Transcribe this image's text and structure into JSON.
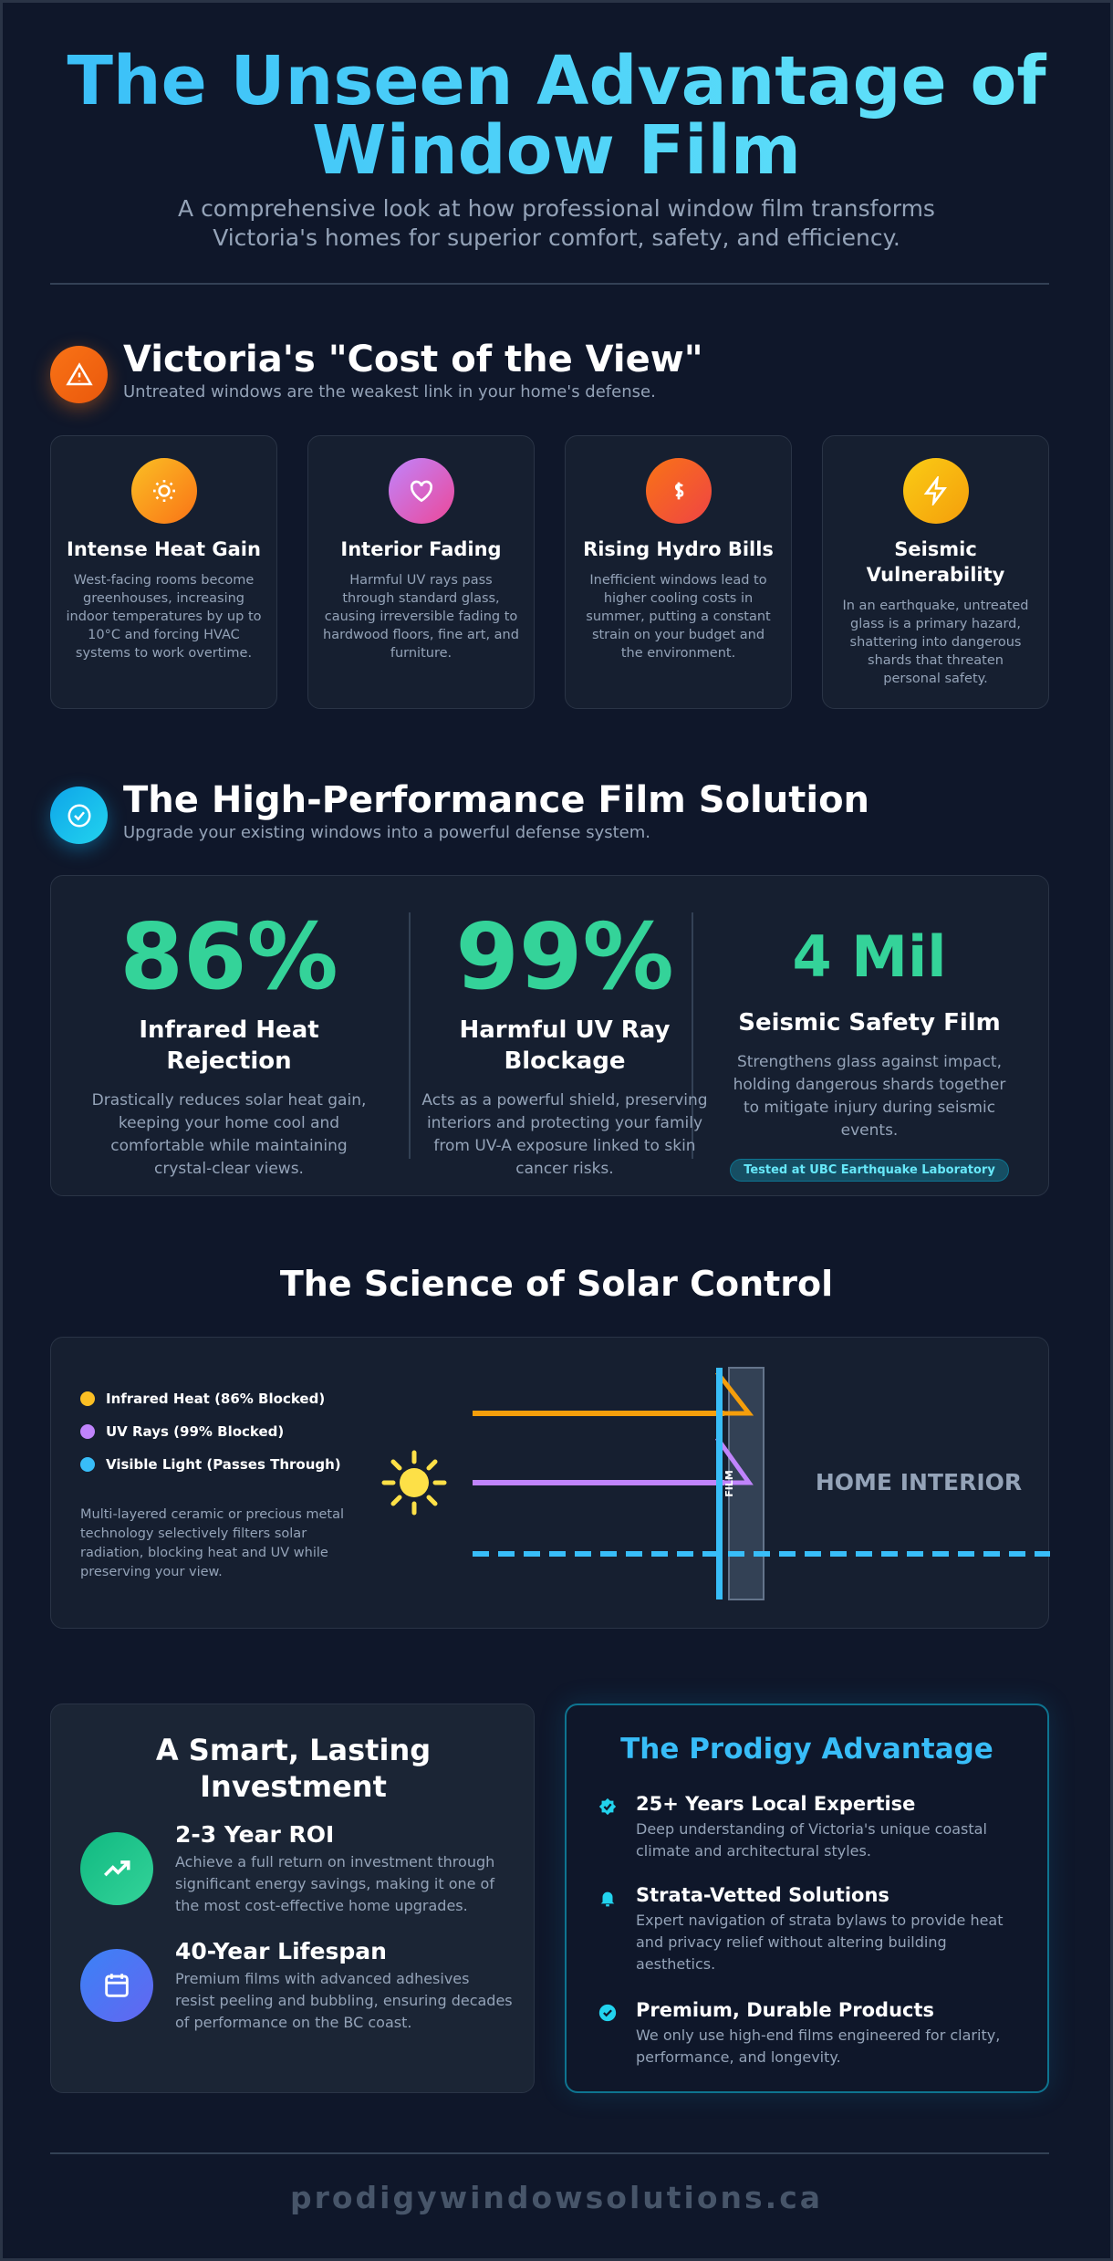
{
  "header": {
    "title": "The Unseen Advantage of Window Film",
    "subtitle": "A comprehensive look at how professional window film transforms Victoria's homes for superior comfort, safety, and efficiency."
  },
  "problem": {
    "title": "Victoria's \"Cost of the View\"",
    "subtitle": "Untreated windows are the weakest link in your home's defense.",
    "cards": [
      {
        "title": "Intense Heat Gain",
        "text": "West-facing rooms become greenhouses, increasing indoor temperatures by up to 10°C and forcing HVAC systems to work overtime."
      },
      {
        "title": "Interior Fading",
        "text": "Harmful UV rays pass through standard glass, causing irreversible fading to hardwood floors, fine art, and furniture."
      },
      {
        "title": "Rising Hydro Bills",
        "text": "Inefficient windows lead to higher cooling costs in summer, putting a constant strain on your budget and the environment."
      },
      {
        "title": "Seismic Vulnerability",
        "text": "In an earthquake, untreated glass is a primary hazard, shattering into dangerous shards that threaten personal safety."
      }
    ]
  },
  "solution": {
    "title": "The High-Performance Film Solution",
    "subtitle": "Upgrade your existing windows into a powerful defense system.",
    "stats": [
      {
        "value": "86%",
        "label": "Infrared Heat Rejection",
        "text": "Drastically reduces solar heat gain, keeping your home cool and comfortable while maintaining crystal-clear views."
      },
      {
        "value": "99%",
        "label": "Harmful UV Ray Blockage",
        "text": "Acts as a powerful shield, preserving interiors and protecting your family from UV-A exposure linked to skin cancer risks."
      },
      {
        "value": "4 Mil",
        "label": "Seismic Safety Film",
        "text": "Strengthens glass against impact, holding dangerous shards together to mitigate injury during seismic events."
      }
    ],
    "badge": "Tested at UBC Earthquake Laboratory"
  },
  "science": {
    "title": "The Science of Solar Control",
    "legend": [
      "Infrared Heat (86% Blocked)",
      "UV Rays (99% Blocked)",
      "Visible Light (Passes Through)"
    ],
    "description": "Multi-layered ceramic or precious metal technology selectively filters solar radiation, blocking heat and UV while preserving your view.",
    "film_label": "FILM",
    "interior_label": "HOME INTERIOR"
  },
  "investment": {
    "title": "A Smart, Lasting Investment",
    "items": [
      {
        "title": "2-3 Year ROI",
        "text": "Achieve a full return on investment through significant energy savings, making it one of the most cost-effective home upgrades."
      },
      {
        "title": "40-Year Lifespan",
        "text": "Premium films with advanced adhesives resist peeling and bubbling, ensuring decades of performance on the BC coast."
      }
    ]
  },
  "advantage": {
    "title": "The Prodigy Advantage",
    "items": [
      {
        "title": "25+ Years Local Expertise",
        "text": "Deep understanding of Victoria's unique coastal climate and architectural styles."
      },
      {
        "title": "Strata-Vetted Solutions",
        "text": "Expert navigation of strata bylaws to provide heat and privacy relief without altering building aesthetics."
      },
      {
        "title": "Premium, Durable Products",
        "text": "We only use high-end films engineered for clarity, performance, and longevity."
      }
    ]
  },
  "footer": {
    "text": "prodigywindowsolutions.ca"
  }
}
